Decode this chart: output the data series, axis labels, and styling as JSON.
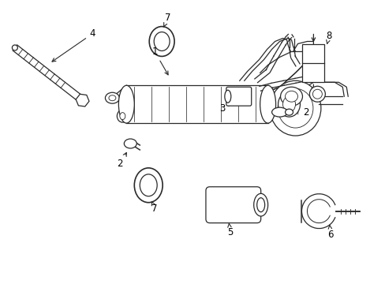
{
  "bg_color": "#ffffff",
  "line_color": "#2a2a2a",
  "text_color": "#000000",
  "figsize": [
    4.89,
    3.6
  ],
  "dpi": 100
}
